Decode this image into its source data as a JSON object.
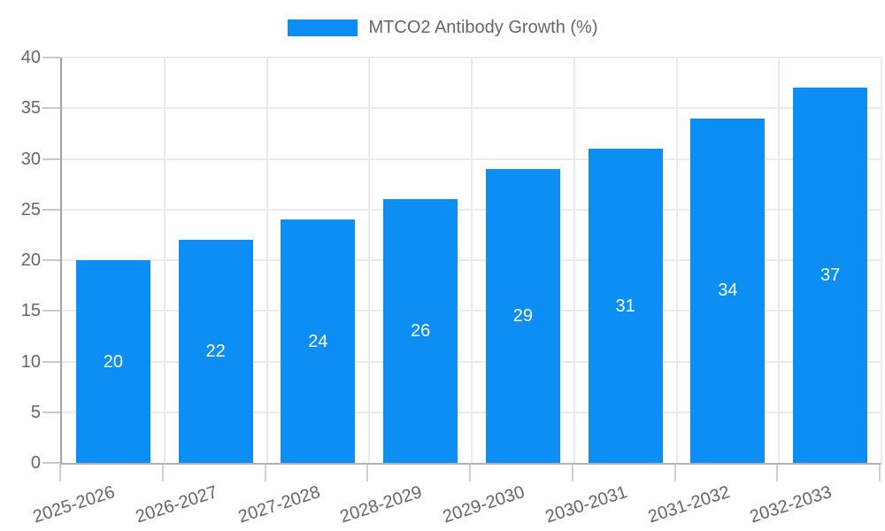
{
  "chart_data": {
    "type": "bar",
    "title": "MTCO2 Antibody Growth (%)",
    "legend": {
      "label": "MTCO2 Antibody Growth (%)",
      "position": "top"
    },
    "categories": [
      "2025-2026",
      "2026-2027",
      "2027-2028",
      "2028-2029",
      "2029-2030",
      "2030-2031",
      "2031-2032",
      "2032-2033"
    ],
    "values": [
      20,
      22,
      24,
      26,
      29,
      31,
      34,
      37
    ],
    "data_labels": [
      20,
      22,
      24,
      26,
      29,
      31,
      34,
      37
    ],
    "data_label_position": "inside-center",
    "xlabel": "",
    "ylabel": "",
    "ylim": [
      0,
      40
    ],
    "yticks": [
      0,
      5,
      10,
      15,
      20,
      25,
      30,
      35,
      40
    ],
    "grid": true,
    "x_tick_rotation_deg": -18,
    "colors": {
      "bar": "#0d8ef4",
      "data_label": "#ffffff",
      "axis_text": "#666666",
      "legend_text": "#666666",
      "grid": "#ebebeb",
      "axis_line_left": "#a3a3a3",
      "axis_line_bottom": "#b3b3b3",
      "y_tick_mark": "#c9c9c9",
      "x_tick_mark": "#cfcfcf",
      "background": "#ffffff"
    }
  }
}
